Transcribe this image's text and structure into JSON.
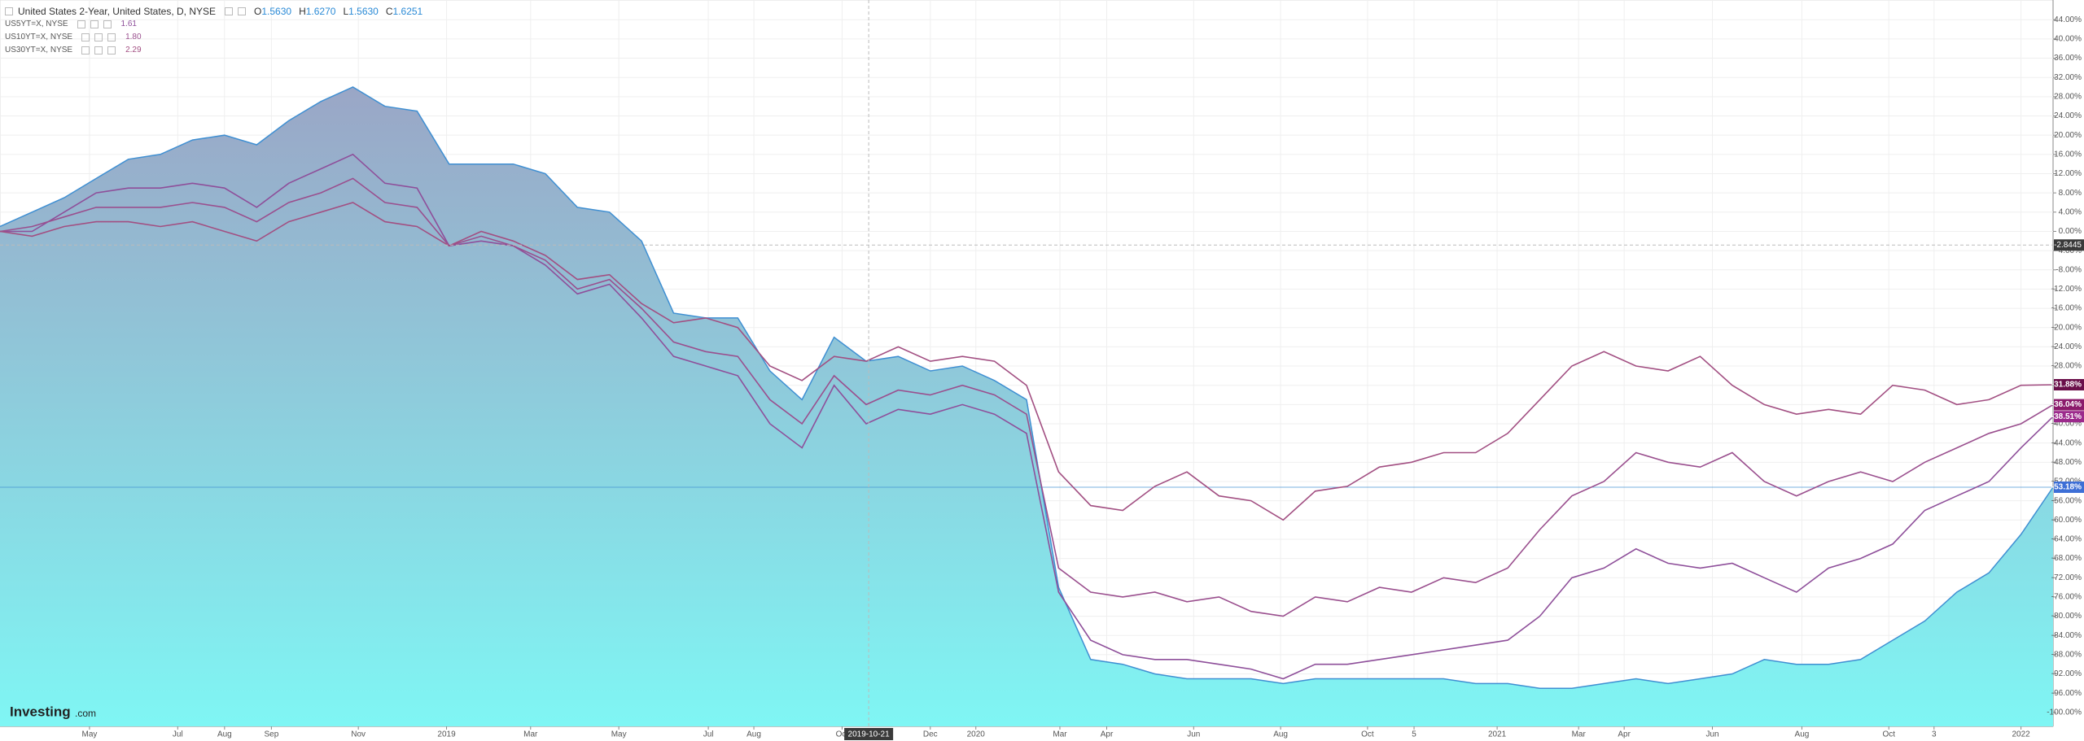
{
  "chart_data": {
    "type": "line",
    "legend": {
      "symbol": "United States 2-Year, United States, D, NYSE",
      "ohlc": [
        {
          "key": "O",
          "value": "1.5630"
        },
        {
          "key": "H",
          "value": "1.6270"
        },
        {
          "key": "L",
          "value": "1.5630"
        },
        {
          "key": "C",
          "value": "1.6251"
        }
      ]
    },
    "watermark": {
      "brand": "Investing",
      "suffix": ".com"
    },
    "ylim": [
      -102.9,
      48.1
    ],
    "yticks": [
      {
        "value": 44,
        "label": "44.00%"
      },
      {
        "value": 40,
        "label": "40.00%"
      },
      {
        "value": 36,
        "label": "36.00%"
      },
      {
        "value": 32,
        "label": "32.00%"
      },
      {
        "value": 28,
        "label": "28.00%"
      },
      {
        "value": 24,
        "label": "24.00%"
      },
      {
        "value": 20,
        "label": "20.00%"
      },
      {
        "value": 16,
        "label": "16.00%"
      },
      {
        "value": 12,
        "label": "12.00%"
      },
      {
        "value": 8,
        "label": "8.00%"
      },
      {
        "value": 4,
        "label": "4.00%"
      },
      {
        "value": 0,
        "label": "0.00%"
      },
      {
        "value": -4,
        "label": "-4.00%"
      },
      {
        "value": -8,
        "label": "-8.00%"
      },
      {
        "value": -12,
        "label": "-12.00%"
      },
      {
        "value": -16,
        "label": "-16.00%"
      },
      {
        "value": -20,
        "label": "-20.00%"
      },
      {
        "value": -24,
        "label": "-24.00%"
      },
      {
        "value": -28,
        "label": "-28.00%"
      },
      {
        "value": -32,
        "label": "-32.00%"
      },
      {
        "value": -36,
        "label": "-36.00%"
      },
      {
        "value": -40,
        "label": "-40.00%"
      },
      {
        "value": -44,
        "label": "-44.00%"
      },
      {
        "value": -48,
        "label": "-48.00%"
      },
      {
        "value": -52,
        "label": "-52.00%"
      },
      {
        "value": -56,
        "label": "-56.00%"
      },
      {
        "value": -60,
        "label": "-60.00%"
      },
      {
        "value": -64,
        "label": "-64.00%"
      },
      {
        "value": -68,
        "label": "-68.00%"
      },
      {
        "value": -72,
        "label": "-72.00%"
      },
      {
        "value": -76,
        "label": "-76.00%"
      },
      {
        "value": -80,
        "label": "-80.00%"
      },
      {
        "value": -84,
        "label": "-84.00%"
      },
      {
        "value": -88,
        "label": "-88.00%"
      },
      {
        "value": -92,
        "label": "-92.00%"
      },
      {
        "value": -96,
        "label": "-96.00%"
      },
      {
        "value": -100,
        "label": "-100.00%"
      }
    ],
    "xlim": [
      0,
      64
    ],
    "xticks": [
      {
        "value": 2.79,
        "label": "May"
      },
      {
        "value": 5.54,
        "label": "Jul"
      },
      {
        "value": 7.0,
        "label": "Aug"
      },
      {
        "value": 8.46,
        "label": "Sep"
      },
      {
        "value": 11.17,
        "label": "Nov"
      },
      {
        "value": 13.92,
        "label": "2019"
      },
      {
        "value": 16.54,
        "label": "Mar"
      },
      {
        "value": 19.29,
        "label": "May"
      },
      {
        "value": 22.08,
        "label": "Jul"
      },
      {
        "value": 23.5,
        "label": "Aug"
      },
      {
        "value": 26.25,
        "label": "Oct"
      },
      {
        "value": 29.0,
        "label": "Dec"
      },
      {
        "value": 30.42,
        "label": "2020"
      },
      {
        "value": 33.04,
        "label": "Mar"
      },
      {
        "value": 34.5,
        "label": "Apr"
      },
      {
        "value": 37.21,
        "label": "Jun"
      },
      {
        "value": 39.92,
        "label": "Aug"
      },
      {
        "value": 42.63,
        "label": "Oct"
      },
      {
        "value": 44.08,
        "label": "5"
      },
      {
        "value": 46.67,
        "label": "2021"
      },
      {
        "value": 49.21,
        "label": "Mar"
      },
      {
        "value": 50.63,
        "label": "Apr"
      },
      {
        "value": 53.38,
        "label": "Jun"
      },
      {
        "value": 56.17,
        "label": "Aug"
      },
      {
        "value": 58.88,
        "label": "Oct"
      },
      {
        "value": 60.29,
        "label": "3"
      },
      {
        "value": 63.0,
        "label": "2022"
      }
    ],
    "grid": true,
    "crosshair": {
      "x": 27.08,
      "x_label": "2019-10-21",
      "y": -2.8445
    },
    "series": [
      {
        "name": "United States 2-Year, United States, D, NYSE",
        "style": "area",
        "color": "#3f8fd2",
        "label_color": "#3d6fd6",
        "last_label": "-53.18%",
        "values": [
          1,
          4,
          7,
          11,
          15,
          16,
          19,
          20,
          18,
          23,
          27,
          30,
          26,
          25,
          14,
          14,
          14,
          12,
          5,
          4,
          -2,
          -17,
          -18,
          -18,
          -29,
          -35,
          -22,
          -27,
          -26,
          -29,
          -28,
          -31,
          -35,
          -74,
          -89,
          -90,
          -92,
          -93,
          -93,
          -93,
          -94,
          -93,
          -93,
          -93,
          -93,
          -93,
          -94,
          -94,
          -95,
          -95,
          -94,
          -93,
          -94,
          -93,
          -92,
          -89,
          -90,
          -90,
          -89,
          -85,
          -81,
          -75,
          -71,
          -63,
          -53.18
        ]
      },
      {
        "name": "US5YT=X, NYSE",
        "legend_value": "1.61",
        "style": "line",
        "color": "#8e4f9a",
        "label_color": "#9c2a8c",
        "last_label": "-38.51%",
        "values": [
          0,
          0,
          4,
          8,
          9,
          9,
          10,
          9,
          5,
          10,
          13,
          16,
          10,
          9,
          -3,
          -2,
          -3,
          -7,
          -13,
          -11,
          -18,
          -26,
          -28,
          -30,
          -40,
          -45,
          -32,
          -40,
          -37,
          -38,
          -36,
          -38,
          -42,
          -75,
          -85,
          -88,
          -89,
          -89,
          -90,
          -91,
          -93,
          -90,
          -90,
          -89,
          -88,
          -87,
          -86,
          -85,
          -80,
          -72,
          -70,
          -66,
          -69,
          -70,
          -69,
          -72,
          -75,
          -70,
          -68,
          -65,
          -58,
          -55,
          -52,
          -45,
          -38.51
        ]
      },
      {
        "name": "US10YT=X, NYSE",
        "legend_value": "1.80",
        "style": "line",
        "color": "#9a4f8e",
        "label_color": "#8b1a6b",
        "last_label": "-36.04%",
        "values": [
          0,
          1,
          3,
          5,
          5,
          5,
          6,
          5,
          2,
          6,
          8,
          11,
          6,
          5,
          -3,
          -1,
          -3,
          -6,
          -12,
          -10,
          -16,
          -23,
          -25,
          -26,
          -35,
          -40,
          -30,
          -36,
          -33,
          -34,
          -32,
          -34,
          -38,
          -70,
          -75,
          -76,
          -75,
          -77,
          -76,
          -79,
          -80,
          -76,
          -77,
          -74,
          -75,
          -72,
          -73,
          -70,
          -62,
          -55,
          -52,
          -46,
          -48,
          -49,
          -46,
          -52,
          -55,
          -52,
          -50,
          -52,
          -48,
          -45,
          -42,
          -40,
          -36.04
        ]
      },
      {
        "name": "US30YT=X, NYSE",
        "legend_value": "2.29",
        "style": "line",
        "color": "#a24f82",
        "label_color": "#6a0f4a",
        "last_label": "-31.88%",
        "values": [
          0,
          -1,
          1,
          2,
          2,
          1,
          2,
          0,
          -2,
          2,
          4,
          6,
          2,
          1,
          -3,
          0,
          -2,
          -5,
          -10,
          -9,
          -15,
          -19,
          -18,
          -20,
          -28,
          -31,
          -26,
          -27,
          -24,
          -27,
          -26,
          -27,
          -32,
          -50,
          -57,
          -58,
          -53,
          -50,
          -55,
          -56,
          -60,
          -54,
          -53,
          -49,
          -48,
          -46,
          -46,
          -42,
          -35,
          -28,
          -25,
          -28,
          -29,
          -26,
          -32,
          -36,
          -38,
          -37,
          -38,
          -32,
          -33,
          -36,
          -35,
          -32,
          -31.88
        ]
      }
    ]
  }
}
